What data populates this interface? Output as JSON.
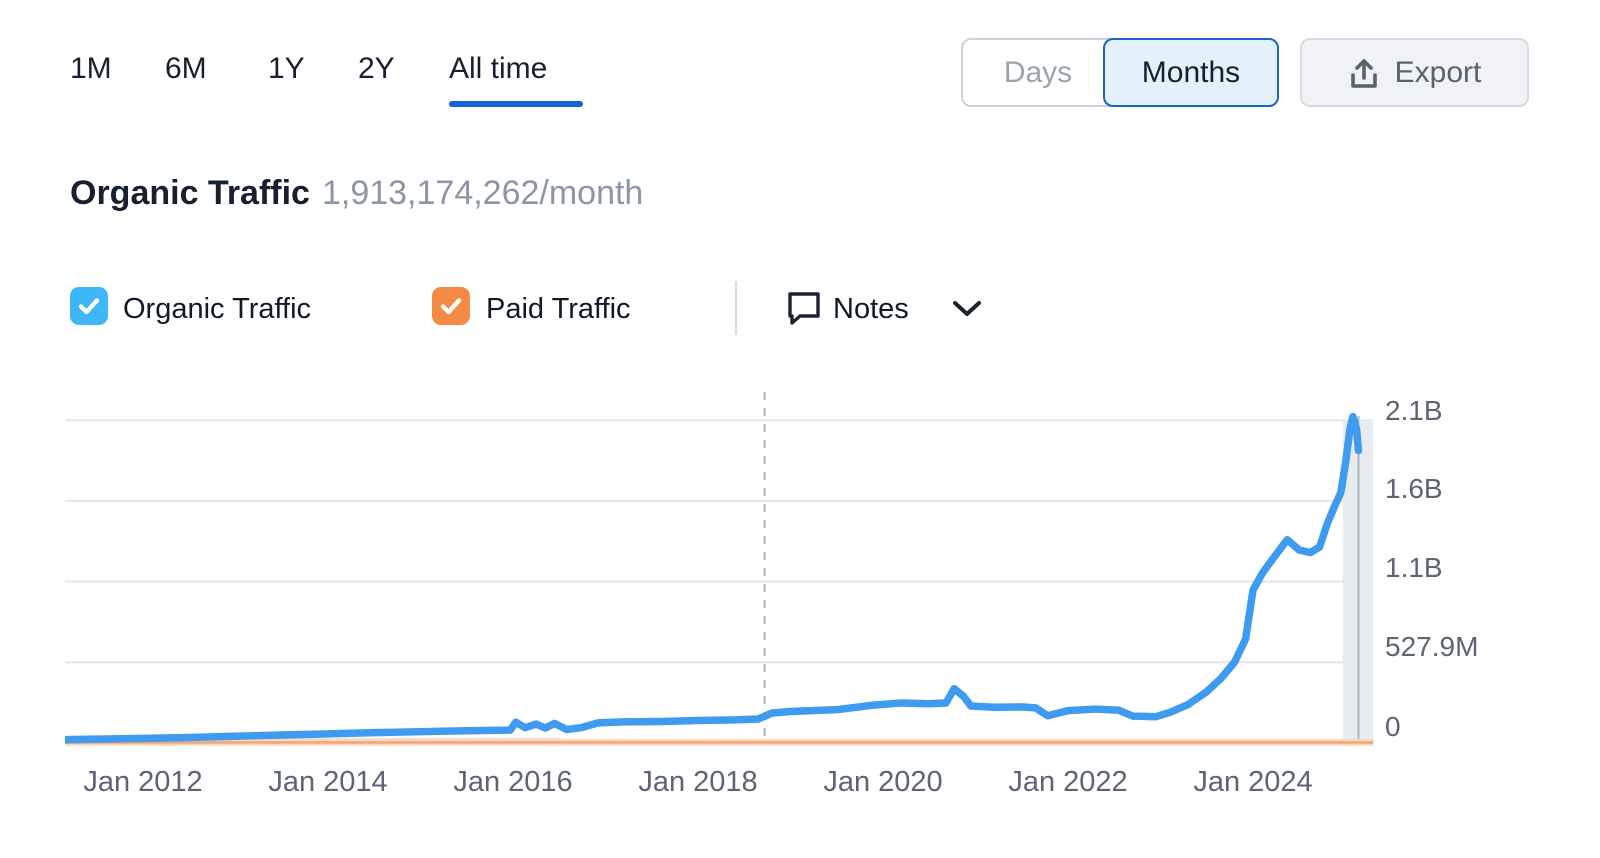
{
  "toolbar": {
    "ranges": [
      {
        "label": "1M",
        "active": false
      },
      {
        "label": "6M",
        "active": false
      },
      {
        "label": "1Y",
        "active": false
      },
      {
        "label": "2Y",
        "active": false
      },
      {
        "label": "All time",
        "active": true
      }
    ],
    "granularity": {
      "days_label": "Days",
      "months_label": "Months",
      "selected": "Months"
    },
    "export_label": "Export"
  },
  "header": {
    "title": "Organic Traffic",
    "value": "1,913,174,262/month"
  },
  "legend": {
    "organic": {
      "label": "Organic Traffic",
      "checked": true,
      "color": "#3eb7f6"
    },
    "paid": {
      "label": "Paid Traffic",
      "checked": true,
      "color": "#f48a43"
    },
    "notes_label": "Notes"
  },
  "colors": {
    "accent_blue": "#1563d2",
    "line_blue": "#3f9bef",
    "line_orange_core": "#efa87c",
    "line_orange_halo": "#f8d9c0",
    "gridline": "#e4e5ec",
    "axis_line": "#dfe3e9",
    "dashed_marker": "#b8bfc9",
    "current_band": "#e8ebef",
    "current_band_line": "#aeb6c1",
    "muted_text": "#5c6573"
  },
  "chart_data": {
    "type": "line",
    "title": "Organic Traffic (All time, monthly)",
    "x_axis": {
      "ticks": [
        "Jan 2012",
        "Jan 2014",
        "Jan 2016",
        "Jan 2018",
        "Jan 2020",
        "Jan 2022",
        "Jan 2024"
      ],
      "tick_years": [
        2012,
        2014,
        2016,
        2018,
        2020,
        2022,
        2024
      ],
      "range_years": [
        2011.16,
        2025.3
      ]
    },
    "y_axis": {
      "ticks": [
        "2.1B",
        "1.6B",
        "1.1B",
        "527.9M",
        "0"
      ],
      "tick_values_m": [
        2111.6,
        1583.7,
        1055.8,
        527.9,
        0
      ],
      "max_m": 2180,
      "grid": true
    },
    "series": [
      {
        "name": "Organic Traffic",
        "color": "#3f9bef",
        "unit": "millions/month",
        "points": [
          [
            2011.16,
            22
          ],
          [
            2011.6,
            26
          ],
          [
            2012.0,
            30
          ],
          [
            2012.5,
            36
          ],
          [
            2013.0,
            44
          ],
          [
            2013.5,
            52
          ],
          [
            2014.0,
            60
          ],
          [
            2014.5,
            68
          ],
          [
            2015.0,
            74
          ],
          [
            2015.5,
            80
          ],
          [
            2015.97,
            84
          ],
          [
            2016.03,
            136
          ],
          [
            2016.13,
            100
          ],
          [
            2016.25,
            124
          ],
          [
            2016.35,
            98
          ],
          [
            2016.45,
            128
          ],
          [
            2016.58,
            88
          ],
          [
            2016.75,
            102
          ],
          [
            2016.92,
            132
          ],
          [
            2017.2,
            138
          ],
          [
            2017.6,
            141
          ],
          [
            2018.0,
            147
          ],
          [
            2018.4,
            151
          ],
          [
            2018.65,
            157
          ],
          [
            2018.72,
            175
          ],
          [
            2018.8,
            196
          ],
          [
            2019.0,
            206
          ],
          [
            2019.5,
            218
          ],
          [
            2019.9,
            248
          ],
          [
            2020.2,
            262
          ],
          [
            2020.5,
            257
          ],
          [
            2020.68,
            262
          ],
          [
            2020.77,
            356
          ],
          [
            2020.87,
            305
          ],
          [
            2020.95,
            242
          ],
          [
            2021.2,
            234
          ],
          [
            2021.5,
            236
          ],
          [
            2021.65,
            230
          ],
          [
            2021.78,
            178
          ],
          [
            2022.0,
            212
          ],
          [
            2022.3,
            222
          ],
          [
            2022.55,
            214
          ],
          [
            2022.7,
            176
          ],
          [
            2022.95,
            172
          ],
          [
            2023.1,
            200
          ],
          [
            2023.3,
            252
          ],
          [
            2023.5,
            336
          ],
          [
            2023.65,
            420
          ],
          [
            2023.8,
            528
          ],
          [
            2023.92,
            680
          ],
          [
            2024.0,
            1000
          ],
          [
            2024.1,
            1110
          ],
          [
            2024.22,
            1210
          ],
          [
            2024.37,
            1330
          ],
          [
            2024.5,
            1262
          ],
          [
            2024.62,
            1246
          ],
          [
            2024.72,
            1282
          ],
          [
            2024.8,
            1430
          ],
          [
            2024.88,
            1545
          ],
          [
            2024.95,
            1640
          ],
          [
            2025.0,
            1830
          ],
          [
            2025.05,
            2060
          ],
          [
            2025.08,
            2135
          ],
          [
            2025.12,
            2050
          ],
          [
            2025.14,
            1913
          ]
        ]
      },
      {
        "name": "Paid Traffic",
        "color": "#efa87c",
        "unit": "millions/month",
        "points": [
          [
            2011.16,
            4
          ],
          [
            2025.3,
            4
          ]
        ]
      }
    ],
    "annotations": {
      "note_marker_year": 2018.72,
      "current_period_band_years": [
        2024.97,
        2025.3
      ],
      "legend_position": "top-left"
    }
  }
}
